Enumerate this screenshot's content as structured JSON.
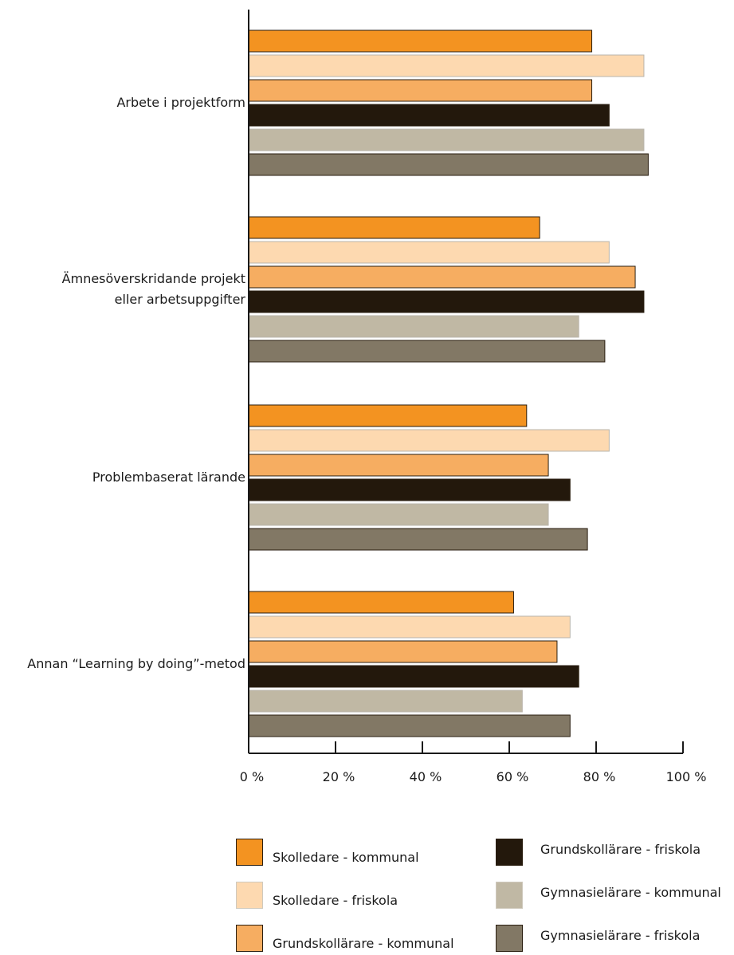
{
  "chart_data": {
    "type": "bar",
    "orientation": "horizontal",
    "categories": [
      "Arbete i projektform",
      "Ämnesöverskridande projekt eller arbetsuppgifter",
      "Problembaserat lärande",
      "Annan “Learning by doing”-metod"
    ],
    "category_lines": [
      [
        "Arbete i projektform"
      ],
      [
        "Ämnesöverskridande projekt",
        "eller arbetsuppgifter"
      ],
      [
        "Problembaserat lärande"
      ],
      [
        "Annan “Learning by doing”-metod"
      ]
    ],
    "series": [
      {
        "name": "Skolledare - kommunal",
        "color": "#f39321",
        "values": [
          79,
          67,
          64,
          61
        ]
      },
      {
        "name": "Skolledare - friskola",
        "color": "#fdd9b0",
        "values": [
          91,
          83,
          83,
          74
        ]
      },
      {
        "name": "Grundskollärare - kommunal",
        "color": "#f6ad61",
        "values": [
          79,
          89,
          69,
          71
        ]
      },
      {
        "name": "Grundskollärare - friskola",
        "color": "#23180c",
        "values": [
          83,
          91,
          74,
          76
        ]
      },
      {
        "name": "Gymnasielärare - kommunal",
        "color": "#c0b8a4",
        "values": [
          91,
          76,
          69,
          63
        ]
      },
      {
        "name": "Gymnasielärare - friskola",
        "color": "#827865",
        "values": [
          92,
          82,
          78,
          74
        ]
      }
    ],
    "xlim": [
      0,
      100
    ],
    "x_ticks": [
      "0 %",
      "20 %",
      "40 %",
      "60 %",
      "80 %",
      "100 %"
    ],
    "grid": false,
    "legend_position": "bottom"
  }
}
